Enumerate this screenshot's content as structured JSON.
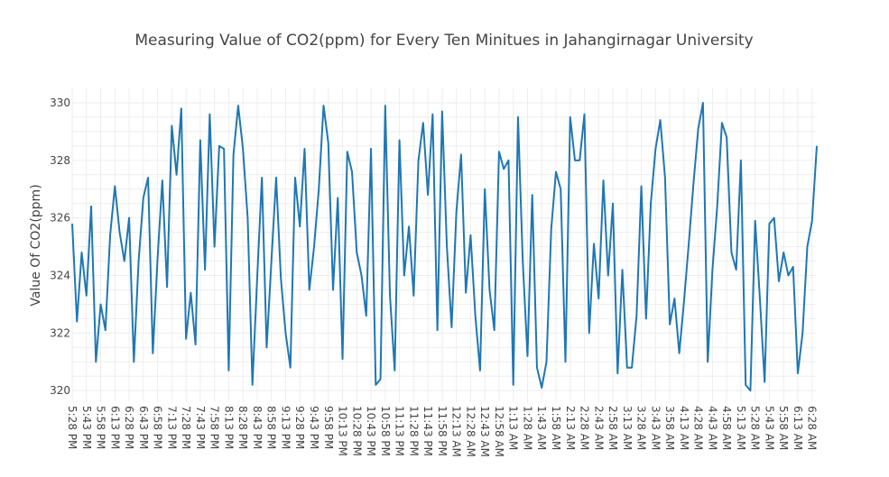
{
  "chart_data": {
    "type": "line",
    "title": "Measuring Value of CO2(ppm) for Every Ten Minitues in Jahangirnagar University",
    "xlabel": "",
    "ylabel": "Value Of CO2(ppm)",
    "ylim": [
      319.6,
      330.5
    ],
    "yticks": [
      320,
      322,
      324,
      326,
      328,
      330
    ],
    "grid": true,
    "legend": "none",
    "color": "#1f77b4",
    "x_tick_labels": [
      "5:28 PM",
      "5:43 PM",
      "5:58 PM",
      "6:13 PM",
      "6:28 PM",
      "6:43 PM",
      "6:58 PM",
      "7:13 PM",
      "7:28 PM",
      "7:43 PM",
      "7:58 PM",
      "8:13 PM",
      "8:28 PM",
      "8:43 PM",
      "8:58 PM",
      "9:13 PM",
      "9:28 PM",
      "9:43 PM",
      "9:58 PM",
      "10:13 PM",
      "10:28 PM",
      "10:43 PM",
      "10:58 PM",
      "11:13 PM",
      "11:28 PM",
      "11:43 PM",
      "11:58 PM",
      "12:13 AM",
      "12:28 AM",
      "12:43 AM",
      "12:58 AM",
      "1:13 AM",
      "1:28 AM",
      "1:43 AM",
      "1:58 AM",
      "2:13 AM",
      "2:28 AM",
      "2:43 AM",
      "2:58 AM",
      "3:13 AM",
      "3:28 AM",
      "3:43 AM",
      "3:58 AM",
      "4:13 AM",
      "4:28 AM",
      "4:43 AM",
      "4:58 AM",
      "5:13 AM",
      "5:28 AM",
      "5:43 AM",
      "5:58 AM",
      "6:13 AM",
      "6:28 AM"
    ],
    "x_start": "5:28 PM",
    "x_interval_minutes": 5,
    "values": [
      325.8,
      322.4,
      324.8,
      323.3,
      326.4,
      321.0,
      323.0,
      322.1,
      325.4,
      327.1,
      325.5,
      324.5,
      326.0,
      321.0,
      324.5,
      326.7,
      327.4,
      321.3,
      324.6,
      327.3,
      323.6,
      329.2,
      327.5,
      329.8,
      321.8,
      323.4,
      321.6,
      328.7,
      324.2,
      329.6,
      325.0,
      328.5,
      328.4,
      320.7,
      328.2,
      329.9,
      328.4,
      326.0,
      320.2,
      323.9,
      327.4,
      321.5,
      324.5,
      327.4,
      323.9,
      322.0,
      320.8,
      327.4,
      325.7,
      328.4,
      323.5,
      325.0,
      327.0,
      329.9,
      328.6,
      323.5,
      326.7,
      321.1,
      328.3,
      327.6,
      324.8,
      324.0,
      322.6,
      328.4,
      320.2,
      320.4,
      329.9,
      323.3,
      320.7,
      328.7,
      324.0,
      325.7,
      323.3,
      328.0,
      329.3,
      326.8,
      329.6,
      322.1,
      329.7,
      325.0,
      322.2,
      326.2,
      328.2,
      323.4,
      325.4,
      322.6,
      320.7,
      327.0,
      323.5,
      322.1,
      328.3,
      327.7,
      328.0,
      320.2,
      329.5,
      324.5,
      321.2,
      326.8,
      320.8,
      320.1,
      321.0,
      325.6,
      327.6,
      327.0,
      321.0,
      329.5,
      328.0,
      328.0,
      329.6,
      322.0,
      325.1,
      323.2,
      327.3,
      324.0,
      326.5,
      320.6,
      324.2,
      320.8,
      320.8,
      322.6,
      327.1,
      322.5,
      326.5,
      328.4,
      329.4,
      327.4,
      322.3,
      323.2,
      321.3,
      323.1,
      325.1,
      327.2,
      329.1,
      330.0,
      321.0,
      324.2,
      326.4,
      329.3,
      328.8,
      324.8,
      324.2,
      328.0,
      320.2,
      320.0,
      325.9,
      323.2,
      320.3,
      325.8,
      326.0,
      323.8,
      324.8,
      324.0,
      324.3,
      320.6,
      322.0,
      325.0,
      325.9,
      328.5
    ]
  }
}
